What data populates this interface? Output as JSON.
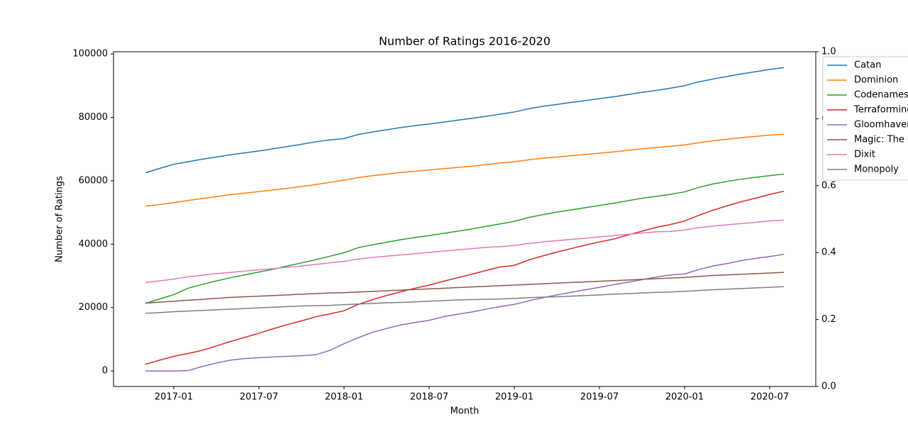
{
  "chart_data": {
    "type": "line",
    "title": "Number of Ratings 2016-2020",
    "x_label": "Month",
    "y_label": "Number of Ratings",
    "x": [
      "2016-11",
      "2016-12",
      "2017-01",
      "2017-02",
      "2017-03",
      "2017-04",
      "2017-05",
      "2017-06",
      "2017-07",
      "2017-08",
      "2017-09",
      "2017-10",
      "2017-11",
      "2017-12",
      "2018-01",
      "2018-02",
      "2018-03",
      "2018-04",
      "2018-05",
      "2018-06",
      "2018-07",
      "2018-08",
      "2018-09",
      "2018-10",
      "2018-11",
      "2018-12",
      "2019-01",
      "2019-02",
      "2019-03",
      "2019-04",
      "2019-05",
      "2019-06",
      "2019-07",
      "2019-08",
      "2019-09",
      "2019-10",
      "2019-11",
      "2019-12",
      "2020-01",
      "2020-02",
      "2020-03",
      "2020-04",
      "2020-05",
      "2020-06",
      "2020-07",
      "2020-08"
    ],
    "xticks": [
      "2017-01",
      "2017-07",
      "2018-01",
      "2018-07",
      "2019-01",
      "2019-07",
      "2020-01",
      "2020-07"
    ],
    "ylim": [
      -4900,
      100700
    ],
    "yticks": [
      0,
      20000,
      40000,
      60000,
      80000,
      100000
    ],
    "y2lim": [
      0,
      1
    ],
    "y2ticks": [
      {
        "value": 0,
        "label": "0.0"
      },
      0.2,
      0.4,
      0.6,
      0.8,
      {
        "value": 1,
        "label": "1.0"
      }
    ],
    "legend": "upper right",
    "series": [
      {
        "name": "Catan",
        "color": "#1f77b4",
        "values": [
          62500,
          63900,
          65200,
          66000,
          66800,
          67500,
          68200,
          68800,
          69400,
          70100,
          70800,
          71500,
          72300,
          72900,
          73300,
          74600,
          75400,
          76100,
          76800,
          77400,
          77900,
          78500,
          79100,
          79700,
          80300,
          81000,
          81700,
          82700,
          83500,
          84100,
          84700,
          85300,
          85900,
          86500,
          87200,
          87900,
          88500,
          89200,
          90000,
          91200,
          92100,
          92900,
          93700,
          94400,
          95100,
          95700
        ]
      },
      {
        "name": "Dominion",
        "color": "#ff7f0e",
        "values": [
          52000,
          52500,
          53100,
          53800,
          54400,
          55000,
          55600,
          56100,
          56600,
          57100,
          57600,
          58200,
          58800,
          59500,
          60200,
          61000,
          61600,
          62100,
          62600,
          63000,
          63400,
          63800,
          64200,
          64600,
          65100,
          65600,
          66000,
          66600,
          67100,
          67500,
          67900,
          68300,
          68700,
          69100,
          69600,
          70100,
          70500,
          70900,
          71300,
          72000,
          72600,
          73100,
          73600,
          74000,
          74400,
          74700
        ]
      },
      {
        "name": "Codenames",
        "color": "#2ca02c",
        "values": [
          21300,
          22700,
          24100,
          26100,
          27300,
          28400,
          29400,
          30300,
          31200,
          32100,
          33100,
          34100,
          35100,
          36200,
          37300,
          38900,
          39800,
          40600,
          41400,
          42100,
          42700,
          43400,
          44100,
          44800,
          45600,
          46400,
          47200,
          48400,
          49300,
          50100,
          50800,
          51500,
          52200,
          52900,
          53700,
          54500,
          55100,
          55700,
          56500,
          57900,
          59000,
          59800,
          60500,
          61100,
          61600,
          62100
        ]
      },
      {
        "name": "Terraforming Mars",
        "color": "#d62728",
        "values": [
          2100,
          3400,
          4600,
          5500,
          6500,
          7900,
          9300,
          10600,
          11900,
          13300,
          14600,
          15800,
          17100,
          18000,
          19000,
          21000,
          22500,
          23800,
          25000,
          26100,
          27100,
          28300,
          29400,
          30500,
          31700,
          32800,
          33300,
          35000,
          36300,
          37500,
          38600,
          39700,
          40700,
          41600,
          42900,
          44100,
          45300,
          46200,
          47300,
          49100,
          50700,
          52100,
          53400,
          54500,
          55700,
          56700
        ]
      },
      {
        "name": "Gloomhaven",
        "color": "#9467bd",
        "values": [
          0,
          0,
          0,
          100,
          1400,
          2500,
          3400,
          3900,
          4200,
          4400,
          4600,
          4800,
          5100,
          6500,
          8600,
          10500,
          12200,
          13400,
          14500,
          15300,
          16000,
          17100,
          17900,
          18600,
          19500,
          20300,
          21000,
          22100,
          23100,
          24000,
          24800,
          25600,
          26400,
          27200,
          28000,
          28800,
          29600,
          30300,
          30600,
          32000,
          33100,
          33900,
          34800,
          35500,
          36100,
          36800
        ]
      },
      {
        "name": "Magic: The Gathering",
        "color": "#8c564b",
        "values": [
          21400,
          21700,
          22000,
          22300,
          22600,
          22900,
          23200,
          23400,
          23600,
          23800,
          24000,
          24200,
          24400,
          24600,
          24700,
          24900,
          25100,
          25300,
          25500,
          25700,
          25900,
          26100,
          26300,
          26500,
          26700,
          26900,
          27100,
          27300,
          27500,
          27700,
          27900,
          28100,
          28300,
          28500,
          28700,
          28900,
          29100,
          29300,
          29500,
          29800,
          30100,
          30300,
          30500,
          30700,
          30900,
          31100
        ]
      },
      {
        "name": "Dixit",
        "color": "#e377c2",
        "values": [
          27900,
          28400,
          29000,
          29700,
          30200,
          30700,
          31100,
          31500,
          31900,
          32300,
          32700,
          33100,
          33600,
          34100,
          34600,
          35300,
          35800,
          36200,
          36600,
          37000,
          37400,
          37800,
          38200,
          38600,
          39000,
          39200,
          39600,
          40200,
          40700,
          41100,
          41500,
          41900,
          42300,
          42700,
          43100,
          43500,
          43900,
          44000,
          44500,
          45200,
          45700,
          46100,
          46500,
          46900,
          47300,
          47600
        ]
      },
      {
        "name": "Monopoly",
        "color": "#7f7f7f",
        "values": [
          18200,
          18400,
          18700,
          18900,
          19100,
          19300,
          19500,
          19700,
          19900,
          20100,
          20300,
          20500,
          20600,
          20700,
          20900,
          21100,
          21300,
          21500,
          21600,
          21800,
          22000,
          22200,
          22400,
          22500,
          22600,
          22700,
          22900,
          23100,
          23300,
          23400,
          23600,
          23800,
          24000,
          24200,
          24400,
          24600,
          24800,
          24900,
          25100,
          25400,
          25600,
          25800,
          26000,
          26200,
          26400,
          26600
        ]
      }
    ]
  }
}
